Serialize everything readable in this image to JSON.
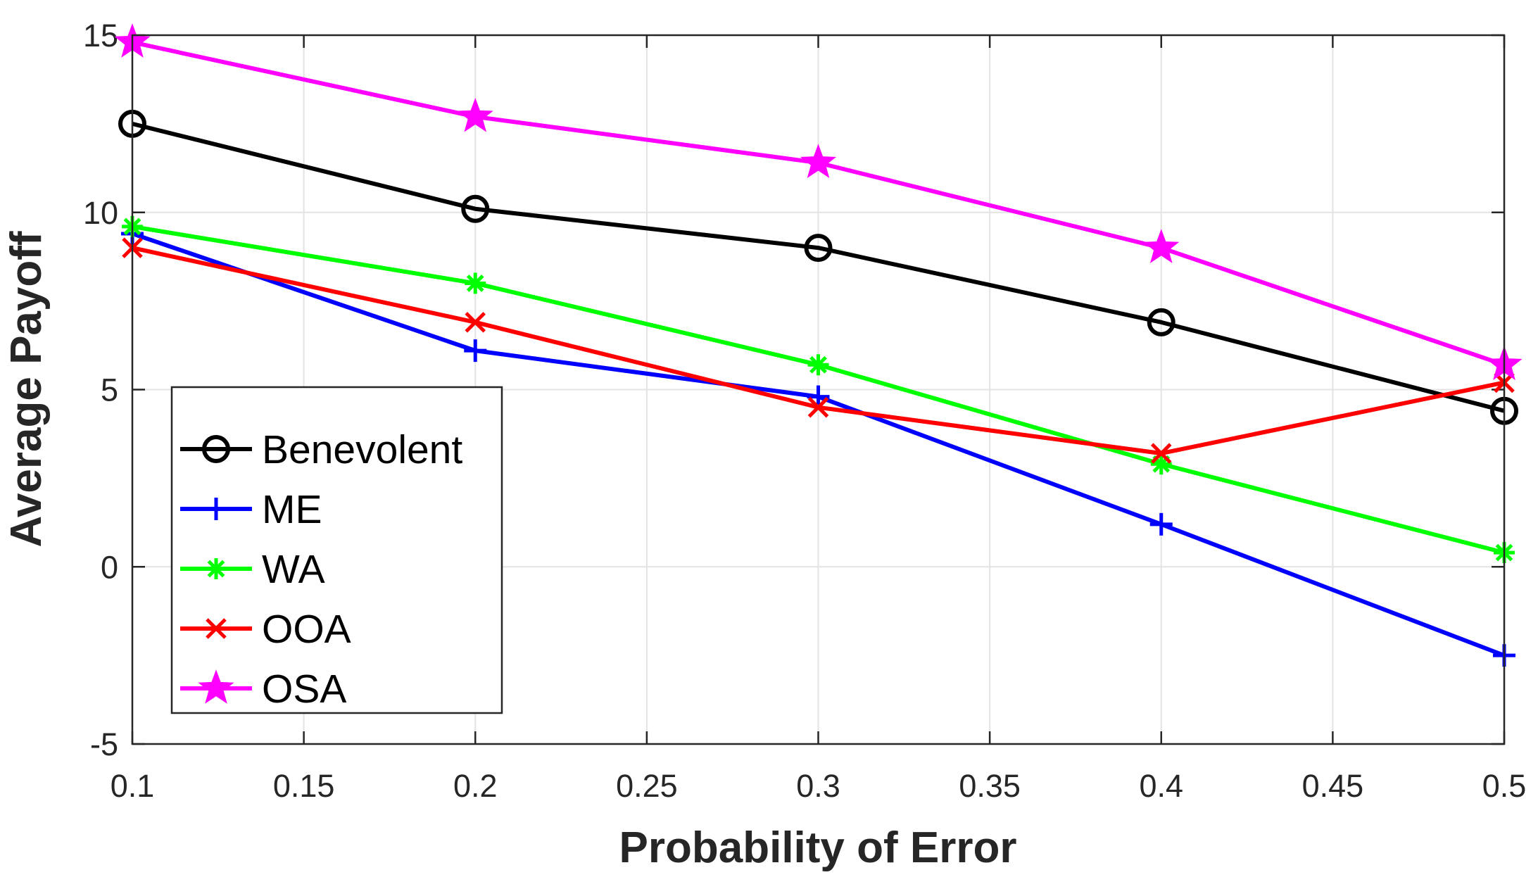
{
  "chart_data": {
    "type": "line",
    "title": "",
    "xlabel": "Probability of Error",
    "ylabel": "Average Payoff",
    "xlim": [
      0.1,
      0.5
    ],
    "ylim": [
      -5,
      15
    ],
    "grid": true,
    "legend_position": "bottom-left",
    "x": [
      0.1,
      0.2,
      0.3,
      0.4,
      0.5
    ],
    "x_ticks": [
      "0.1",
      "0.15",
      "0.2",
      "0.25",
      "0.3",
      "0.35",
      "0.4",
      "0.45",
      "0.5"
    ],
    "x_tick_values": [
      0.1,
      0.15,
      0.2,
      0.25,
      0.3,
      0.35,
      0.4,
      0.45,
      0.5
    ],
    "y_ticks": [
      "-5",
      "0",
      "5",
      "10",
      "15"
    ],
    "y_tick_values": [
      -5,
      0,
      5,
      10,
      15
    ],
    "series": [
      {
        "name": "Benevolent",
        "color": "#000000",
        "marker": "circle",
        "values": [
          12.5,
          10.1,
          9.0,
          6.9,
          4.4
        ]
      },
      {
        "name": "ME",
        "color": "#0000ff",
        "marker": "plus",
        "values": [
          9.4,
          6.1,
          4.8,
          1.2,
          -2.5
        ]
      },
      {
        "name": "WA",
        "color": "#00ff00",
        "marker": "asterisk",
        "values": [
          9.6,
          8.0,
          5.7,
          2.9,
          0.4
        ]
      },
      {
        "name": "OOA",
        "color": "#ff0000",
        "marker": "cross",
        "values": [
          9.0,
          6.9,
          4.5,
          3.2,
          5.2
        ]
      },
      {
        "name": "OSA",
        "color": "#ff00ff",
        "marker": "star",
        "values": [
          14.8,
          12.7,
          11.4,
          9.0,
          5.7
        ]
      }
    ]
  }
}
